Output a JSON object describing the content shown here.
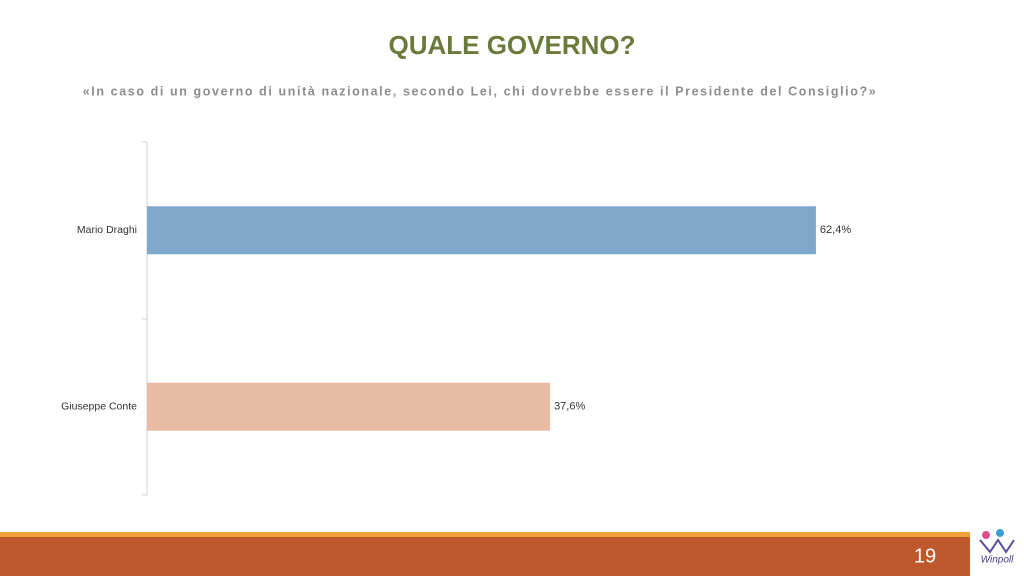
{
  "chart_data": {
    "type": "bar",
    "orientation": "horizontal",
    "title": "QUALE GOVERNO?",
    "subtitle": "«In caso di un governo di unità nazionale, secondo Lei, chi dovrebbe essere il Presidente del Consiglio?»",
    "categories": [
      "Mario Draghi",
      "Giuseppe Conte"
    ],
    "values": [
      62.4,
      37.6
    ],
    "value_labels": [
      "62,4%",
      "37,6%"
    ],
    "colors": [
      "#7ea7cb",
      "#e9bba5"
    ]
  },
  "footer": {
    "page_number": "19",
    "logo": "Winpoll"
  }
}
